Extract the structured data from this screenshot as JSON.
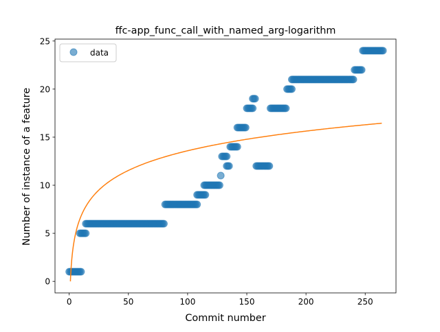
{
  "chart_data": {
    "type": "scatter",
    "title": "ffc-app_func_call_with_named_arg-logarithm",
    "xlabel": "Commit number",
    "ylabel": "Number of instance of a feature",
    "xlim": [
      -12,
      276
    ],
    "ylim": [
      -1.2,
      25.2
    ],
    "xticks": [
      0,
      50,
      100,
      150,
      200,
      250
    ],
    "yticks": [
      0,
      5,
      10,
      15,
      20,
      25
    ],
    "legend": {
      "label": "data",
      "position": "top-left"
    },
    "grid": false,
    "colors": {
      "points": "#1f77b4",
      "fit": "#ff7f0e"
    },
    "series": [
      {
        "name": "data",
        "kind": "points",
        "segments": [
          {
            "x_start": 0,
            "x_end": 10,
            "y": 1
          },
          {
            "x_start": 9,
            "x_end": 14,
            "y": 5
          },
          {
            "x_start": 14,
            "x_end": 80,
            "y": 6
          },
          {
            "x_start": 81,
            "x_end": 108,
            "y": 8
          },
          {
            "x_start": 108,
            "x_end": 115,
            "y": 9
          },
          {
            "x_start": 114,
            "x_end": 127,
            "y": 10
          },
          {
            "x_start": 128,
            "x_end": 128,
            "y": 11
          },
          {
            "x_start": 129,
            "x_end": 133,
            "y": 13
          },
          {
            "x_start": 133,
            "x_end": 135,
            "y": 12
          },
          {
            "x_start": 136,
            "x_end": 142,
            "y": 14
          },
          {
            "x_start": 142,
            "x_end": 149,
            "y": 16
          },
          {
            "x_start": 150,
            "x_end": 155,
            "y": 18
          },
          {
            "x_start": 155,
            "x_end": 157,
            "y": 19
          },
          {
            "x_start": 158,
            "x_end": 169,
            "y": 12
          },
          {
            "x_start": 170,
            "x_end": 183,
            "y": 18
          },
          {
            "x_start": 184,
            "x_end": 188,
            "y": 20
          },
          {
            "x_start": 188,
            "x_end": 240,
            "y": 21
          },
          {
            "x_start": 241,
            "x_end": 247,
            "y": 22
          },
          {
            "x_start": 248,
            "x_end": 265,
            "y": 24
          }
        ]
      },
      {
        "name": "",
        "kind": "line",
        "x_range": [
          1,
          264
        ],
        "formula": "2.95 * ln(x)"
      }
    ]
  }
}
